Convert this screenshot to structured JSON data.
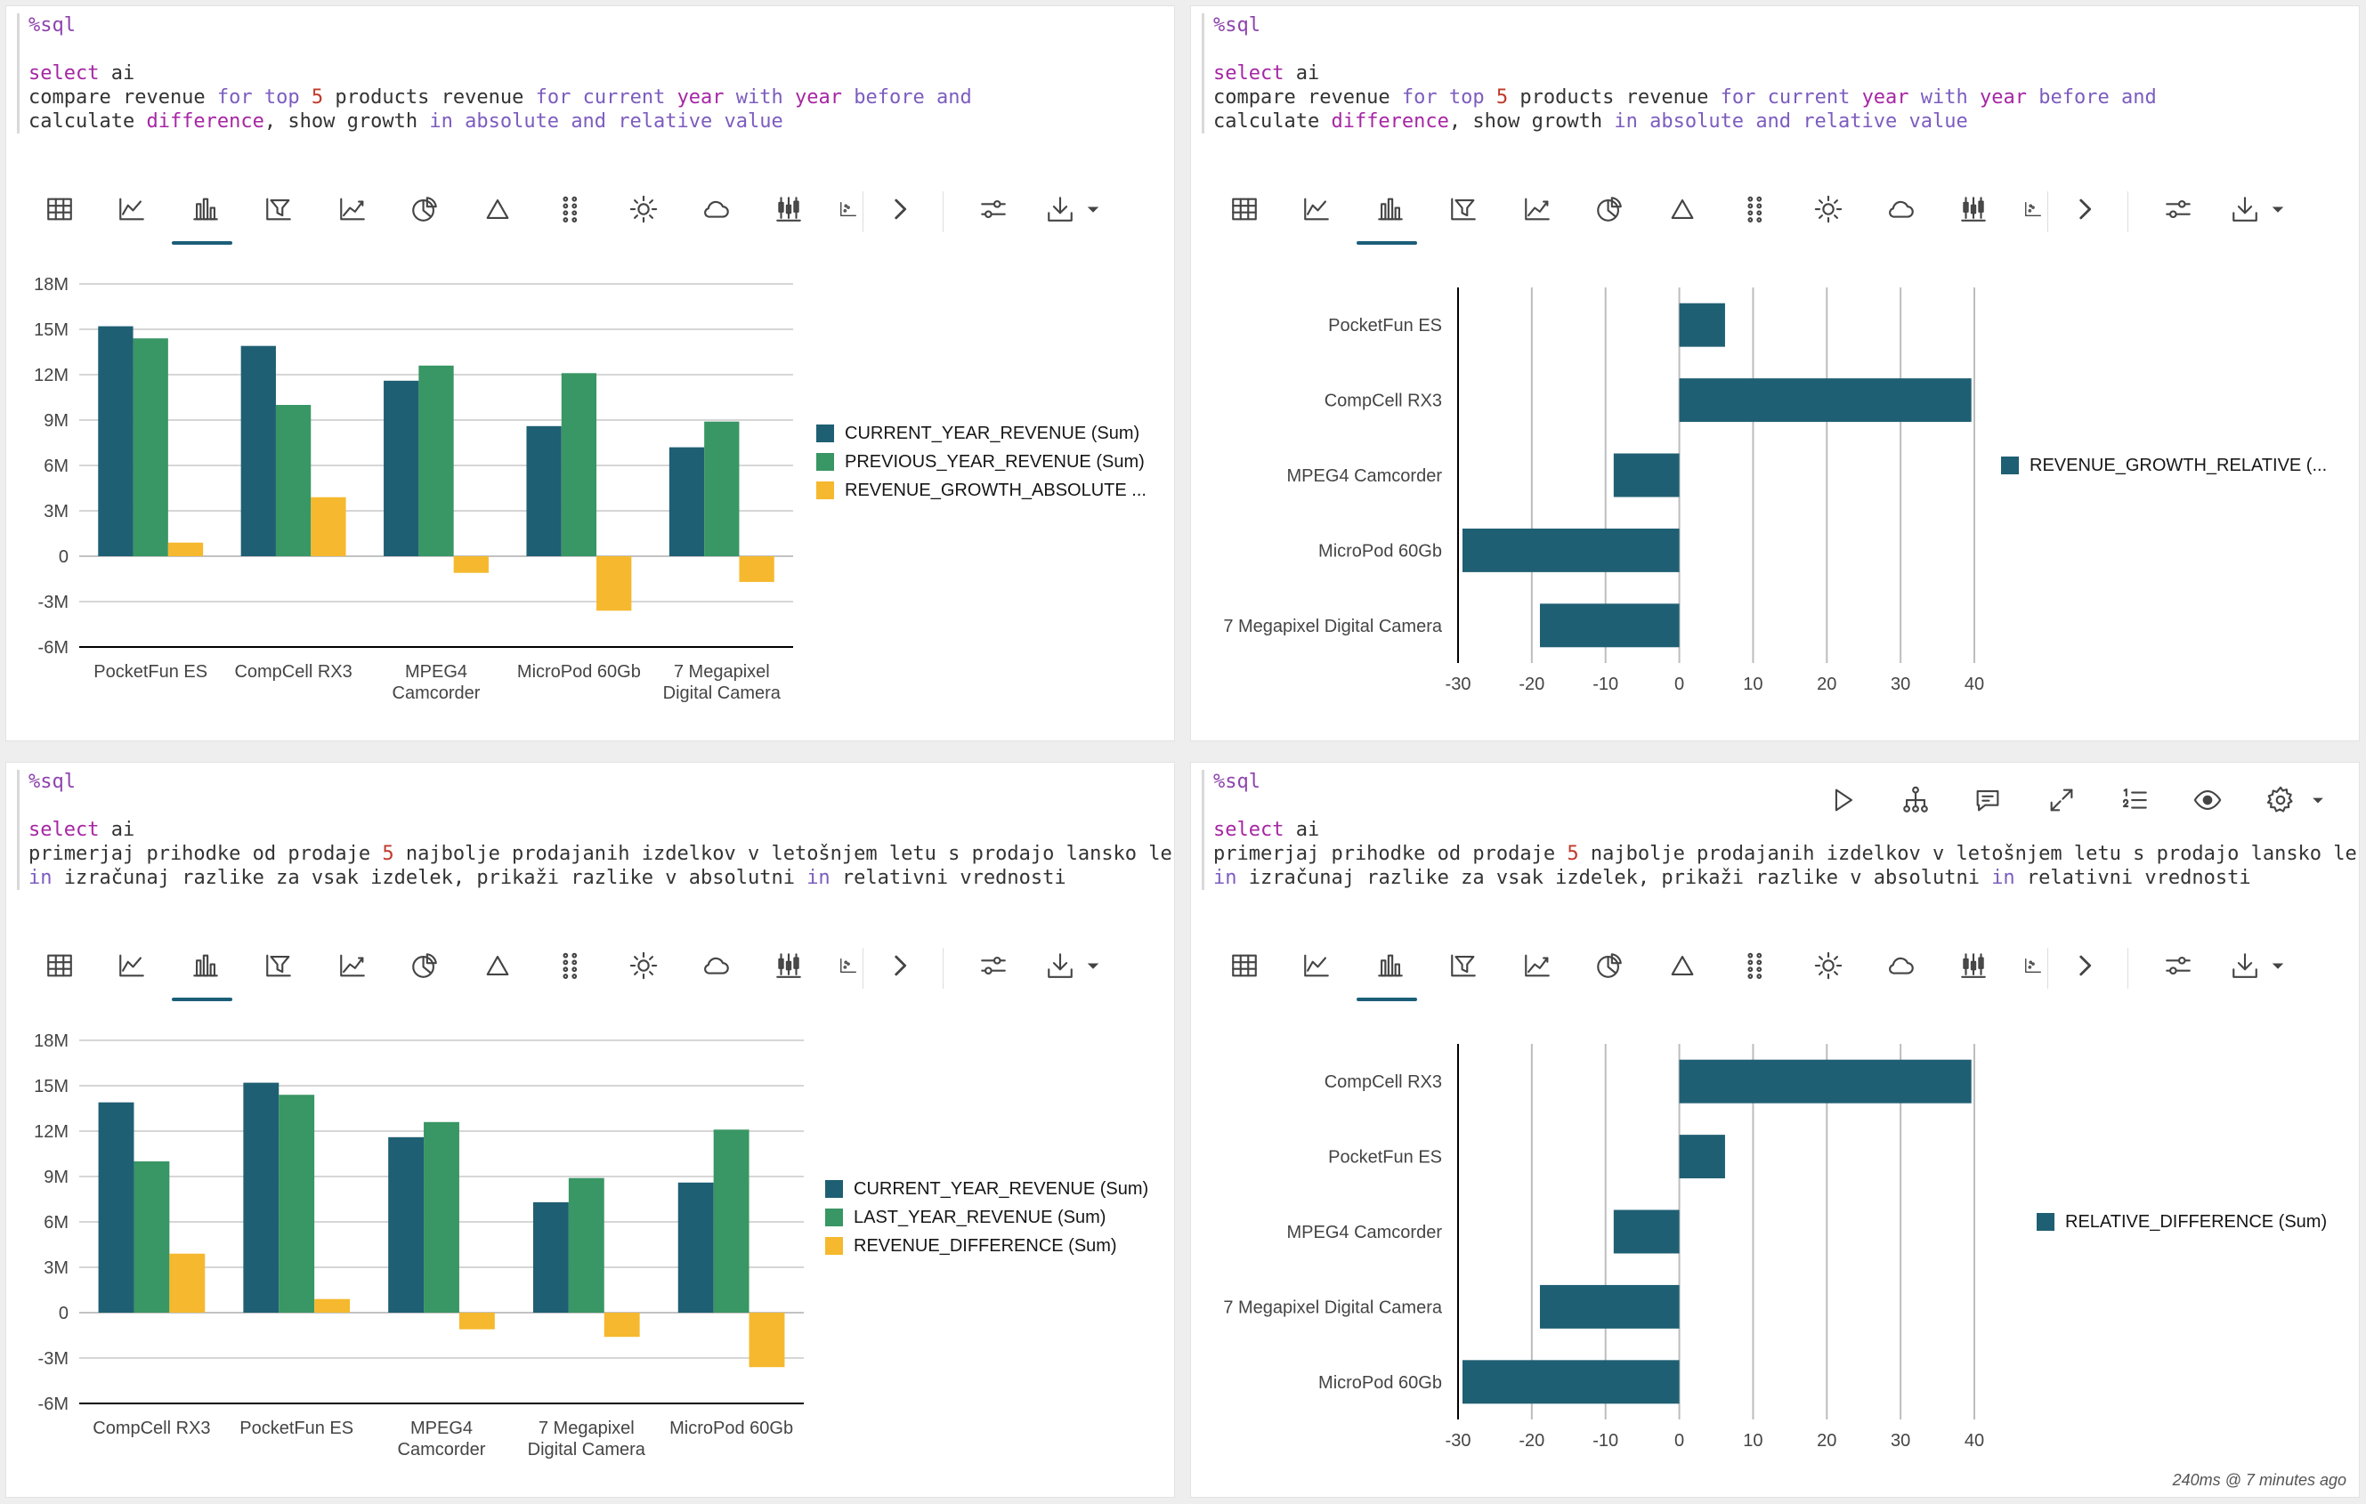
{
  "colors": {
    "current": "#1f5f73",
    "previous": "#399665",
    "diff": "#f5b82e",
    "bar_h": "#1f5f73",
    "grid": "#bdbdbd",
    "axis": "#000000",
    "text": "#444444",
    "active_tab": "#1b5e78"
  },
  "toolbar_icons": [
    "table-icon",
    "line-chart-icon",
    "bar-chart-icon",
    "funnel-chart-icon",
    "area-chart-icon",
    "pie-chart-icon",
    "pyramid-icon",
    "dot-matrix-icon",
    "sunburst-icon",
    "cloud-icon",
    "boxplot-icon",
    "scatter-icon"
  ],
  "toolbar_extra": [
    "chevron-right-icon",
    "settings-sliders-icon",
    "download-icon",
    "caret-down-icon"
  ],
  "top_icons": [
    "play-icon",
    "hierarchy-icon",
    "comment-icon",
    "expand-icon",
    "numbered-list-icon",
    "eye-icon",
    "gear-icon",
    "caret-down-icon"
  ],
  "panels": [
    {
      "id": "p1",
      "code": {
        "directive": "%sql",
        "lines": [
          [
            {
              "t": "select",
              "c": "kw"
            },
            {
              "t": " ai",
              "c": ""
            }
          ],
          [
            {
              "t": "compare revenue ",
              "c": ""
            },
            {
              "t": "for",
              "c": "kb"
            },
            {
              "t": " ",
              "c": ""
            },
            {
              "t": "top",
              "c": "kb"
            },
            {
              "t": " ",
              "c": ""
            },
            {
              "t": "5",
              "c": "num"
            },
            {
              "t": " products revenue ",
              "c": ""
            },
            {
              "t": "for",
              "c": "kb"
            },
            {
              "t": " ",
              "c": ""
            },
            {
              "t": "current",
              "c": "kb"
            },
            {
              "t": " ",
              "c": ""
            },
            {
              "t": "year",
              "c": "kw"
            },
            {
              "t": " ",
              "c": ""
            },
            {
              "t": "with",
              "c": "kb"
            },
            {
              "t": " ",
              "c": ""
            },
            {
              "t": "year",
              "c": "kw"
            },
            {
              "t": " ",
              "c": ""
            },
            {
              "t": "before",
              "c": "kb"
            },
            {
              "t": " ",
              "c": ""
            },
            {
              "t": "and",
              "c": "kb"
            }
          ],
          [
            {
              "t": "calculate ",
              "c": ""
            },
            {
              "t": "difference",
              "c": "kw"
            },
            {
              "t": ", show growth ",
              "c": ""
            },
            {
              "t": "in",
              "c": "kb"
            },
            {
              "t": " ",
              "c": ""
            },
            {
              "t": "absolute",
              "c": "kb"
            },
            {
              "t": " ",
              "c": ""
            },
            {
              "t": "and",
              "c": "kb"
            },
            {
              "t": " ",
              "c": ""
            },
            {
              "t": "relative",
              "c": "kb"
            },
            {
              "t": " ",
              "c": ""
            },
            {
              "t": "value",
              "c": "kb"
            }
          ]
        ]
      },
      "chart_data": {
        "type": "bar",
        "categories": [
          "PocketFun ES",
          "CompCell RX3",
          "MPEG4\nCamcorder",
          "MicroPod 60Gb",
          "7 Megapixel\nDigital Camera"
        ],
        "series": [
          {
            "name": "CURRENT_YEAR_REVENUE (Sum)",
            "values": [
              15.2,
              13.9,
              11.6,
              8.6,
              7.2
            ]
          },
          {
            "name": "PREVIOUS_YEAR_REVENUE (Sum)",
            "values": [
              14.4,
              10.0,
              12.6,
              12.1,
              8.9
            ]
          },
          {
            "name": "REVENUE_GROWTH_ABSOLUTE ...",
            "values": [
              0.9,
              3.9,
              -1.1,
              -3.6,
              -1.7
            ]
          }
        ],
        "y_ticks": [
          "18M",
          "15M",
          "12M",
          "9M",
          "6M",
          "3M",
          "0",
          "-3M",
          "-6M"
        ],
        "ylim": [
          -6,
          18
        ],
        "y_unit": "M"
      }
    },
    {
      "id": "p2",
      "code": {
        "directive": "%sql",
        "lines": [
          [
            {
              "t": "select",
              "c": "kw"
            },
            {
              "t": " ai",
              "c": ""
            }
          ],
          [
            {
              "t": "compare revenue ",
              "c": ""
            },
            {
              "t": "for",
              "c": "kb"
            },
            {
              "t": " ",
              "c": ""
            },
            {
              "t": "top",
              "c": "kb"
            },
            {
              "t": " ",
              "c": ""
            },
            {
              "t": "5",
              "c": "num"
            },
            {
              "t": " products revenue ",
              "c": ""
            },
            {
              "t": "for",
              "c": "kb"
            },
            {
              "t": " ",
              "c": ""
            },
            {
              "t": "current",
              "c": "kb"
            },
            {
              "t": " ",
              "c": ""
            },
            {
              "t": "year",
              "c": "kw"
            },
            {
              "t": " ",
              "c": ""
            },
            {
              "t": "with",
              "c": "kb"
            },
            {
              "t": " ",
              "c": ""
            },
            {
              "t": "year",
              "c": "kw"
            },
            {
              "t": " ",
              "c": ""
            },
            {
              "t": "before",
              "c": "kb"
            },
            {
              "t": " ",
              "c": ""
            },
            {
              "t": "and",
              "c": "kb"
            }
          ],
          [
            {
              "t": "calculate ",
              "c": ""
            },
            {
              "t": "difference",
              "c": "kw"
            },
            {
              "t": ", show growth ",
              "c": ""
            },
            {
              "t": "in",
              "c": "kb"
            },
            {
              "t": " ",
              "c": ""
            },
            {
              "t": "absolute",
              "c": "kb"
            },
            {
              "t": " ",
              "c": ""
            },
            {
              "t": "and",
              "c": "kb"
            },
            {
              "t": " ",
              "c": ""
            },
            {
              "t": "relative",
              "c": "kb"
            },
            {
              "t": " ",
              "c": ""
            },
            {
              "t": "value",
              "c": "kb"
            }
          ]
        ]
      },
      "chart_data": {
        "type": "hbar",
        "categories": [
          "PocketFun ES",
          "CompCell RX3",
          "MPEG4 Camcorder",
          "MicroPod 60Gb",
          "7 Megapixel Digital Camera"
        ],
        "series": [
          {
            "name": "REVENUE_GROWTH_RELATIVE (...",
            "values": [
              6.2,
              39.6,
              -8.9,
              -29.4,
              -18.9
            ]
          }
        ],
        "x_ticks": [
          "-30",
          "-20",
          "-10",
          "0",
          "10",
          "20",
          "30",
          "40"
        ],
        "xlim": [
          -30,
          40
        ]
      }
    },
    {
      "id": "p3",
      "code": {
        "directive": "%sql",
        "lines": [
          [
            {
              "t": "select",
              "c": "kw"
            },
            {
              "t": " ai",
              "c": ""
            }
          ],
          [
            {
              "t": "primerjaj prihodke od prodaje ",
              "c": ""
            },
            {
              "t": "5",
              "c": "num"
            },
            {
              "t": " najbolje prodajanih izdelkov v letošnjem letu s prodajo lansko le",
              "c": ""
            }
          ],
          [
            {
              "t": "in",
              "c": "kb"
            },
            {
              "t": " izračunaj razlike za vsak izdelek, prikaži razlike v absolutni ",
              "c": ""
            },
            {
              "t": "in",
              "c": "kb"
            },
            {
              "t": " relativni vrednosti",
              "c": ""
            }
          ]
        ]
      },
      "chart_data": {
        "type": "bar",
        "categories": [
          "CompCell RX3",
          "PocketFun ES",
          "MPEG4\nCamcorder",
          "7 Megapixel\nDigital Camera",
          "MicroPod 60Gb"
        ],
        "series": [
          {
            "name": "CURRENT_YEAR_REVENUE (Sum)",
            "values": [
              13.9,
              15.2,
              11.6,
              7.3,
              8.6
            ]
          },
          {
            "name": "LAST_YEAR_REVENUE (Sum)",
            "values": [
              10.0,
              14.4,
              12.6,
              8.9,
              12.1
            ]
          },
          {
            "name": "REVENUE_DIFFERENCE (Sum)",
            "values": [
              3.9,
              0.9,
              -1.1,
              -1.6,
              -3.6
            ]
          }
        ],
        "y_ticks": [
          "18M",
          "15M",
          "12M",
          "9M",
          "6M",
          "3M",
          "0",
          "-3M",
          "-6M"
        ],
        "ylim": [
          -6,
          18
        ],
        "y_unit": "M"
      }
    },
    {
      "id": "p4",
      "code": {
        "directive": "%sql",
        "lines": [
          [
            {
              "t": "select",
              "c": "kw"
            },
            {
              "t": " ai",
              "c": ""
            }
          ],
          [
            {
              "t": "primerjaj prihodke od prodaje ",
              "c": ""
            },
            {
              "t": "5",
              "c": "num"
            },
            {
              "t": " najbolje prodajanih izdelkov v letošnjem letu s prodajo lansko le",
              "c": ""
            }
          ],
          [
            {
              "t": "in",
              "c": "kb"
            },
            {
              "t": " izračunaj razlike za vsak izdelek, prikaži razlike v absolutni ",
              "c": ""
            },
            {
              "t": "in",
              "c": "kb"
            },
            {
              "t": " relativni vrednosti",
              "c": ""
            }
          ]
        ]
      },
      "chart_data": {
        "type": "hbar",
        "categories": [
          "CompCell RX3",
          "PocketFun ES",
          "MPEG4 Camcorder",
          "7 Megapixel Digital Camera",
          "MicroPod 60Gb"
        ],
        "series": [
          {
            "name": "RELATIVE_DIFFERENCE (Sum)",
            "values": [
              39.6,
              6.2,
              -8.9,
              -18.9,
              -29.4
            ]
          }
        ],
        "x_ticks": [
          "-30",
          "-20",
          "-10",
          "0",
          "10",
          "20",
          "30",
          "40"
        ],
        "xlim": [
          -30,
          40
        ]
      },
      "status": "240ms @ 7 minutes ago"
    }
  ]
}
